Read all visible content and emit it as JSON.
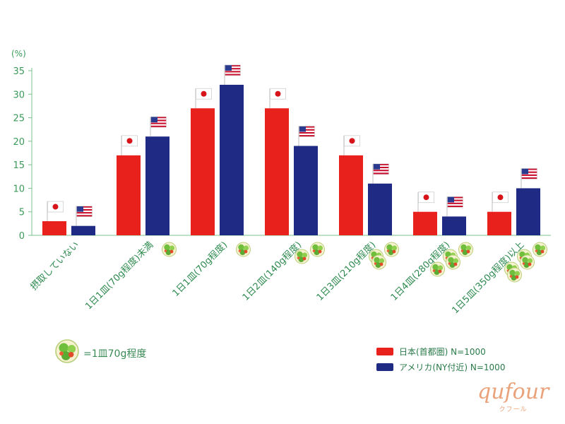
{
  "chart_data": {
    "type": "bar",
    "unit_label": "(%)",
    "ylim": [
      0,
      35
    ],
    "yticks": [
      0,
      5,
      10,
      15,
      20,
      25,
      30,
      35
    ],
    "categories": [
      "摂取していない",
      "1日1皿(70g程度)未満",
      "1日1皿(70g程度)",
      "1日2皿(140g程度)",
      "1日3皿(210g程度)",
      "1日4皿(280g程度)",
      "1日5皿(350g程度)以上"
    ],
    "salad_counts": [
      0,
      1,
      1,
      2,
      3,
      4,
      5
    ],
    "series": [
      {
        "name": "日本(首都圏) N=1000",
        "color": "#e8211c",
        "flag": "japan",
        "values": [
          3,
          17,
          27,
          27,
          17,
          5,
          5
        ]
      },
      {
        "name": "アメリカ(NY付近) N=1000",
        "color": "#1f2a84",
        "flag": "usa",
        "values": [
          2,
          21,
          32,
          19,
          11,
          4,
          10
        ]
      }
    ],
    "legend_position": "bottom-right",
    "grid": false
  },
  "note": {
    "text": "=1皿70g程度",
    "icon": "salad-icon"
  },
  "brand": {
    "name": "qufour",
    "sub": "クフール",
    "color": "#eaa27a"
  },
  "colors": {
    "axis": "#7cc08e",
    "label": "#2f8a50"
  }
}
